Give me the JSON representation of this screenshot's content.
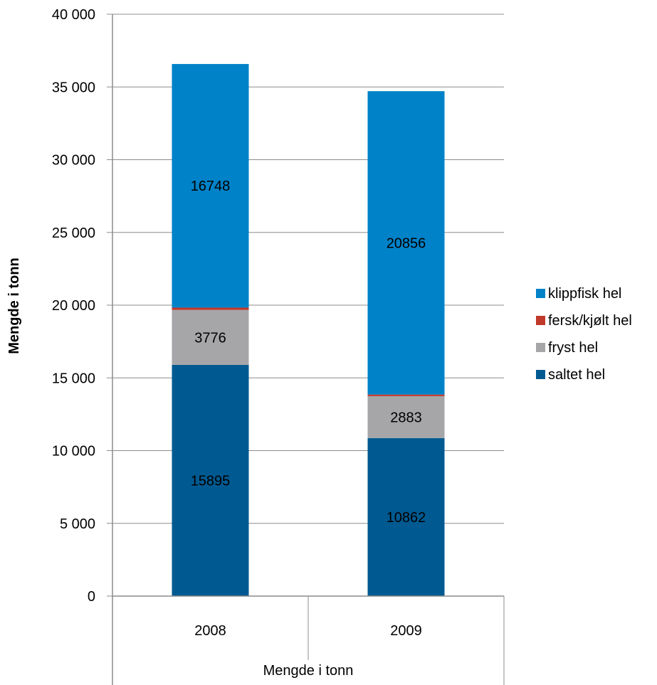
{
  "chart_data": {
    "type": "bar",
    "stacked": true,
    "categories": [
      "2008",
      "2009"
    ],
    "series": [
      {
        "name": "saltet hel",
        "values": [
          15895,
          10862
        ],
        "color": "#005a91",
        "labels": [
          "15895",
          "10862"
        ]
      },
      {
        "name": "fryst hel",
        "values": [
          3776,
          2883
        ],
        "color": "#a6a6a9",
        "labels": [
          "3776",
          "2883"
        ]
      },
      {
        "name": "fersk/kjølt hel",
        "values": [
          160,
          110
        ],
        "color": "#c0392b",
        "labels": [
          "",
          ""
        ]
      },
      {
        "name": "klippfisk hel",
        "values": [
          16748,
          20856
        ],
        "color": "#0082c8",
        "labels": [
          "16748",
          "20856"
        ]
      }
    ],
    "legend_order": [
      "klippfisk hel",
      "fersk/kjølt hel",
      "fryst hel",
      "saltet hel"
    ],
    "xlabel": "Mengde i tonn",
    "ylabel": "Mengde i tonn",
    "ylim": [
      0,
      40000
    ],
    "yticks": [
      0,
      5000,
      10000,
      15000,
      20000,
      25000,
      30000,
      35000,
      40000
    ],
    "ytick_labels": [
      "0",
      "5 000",
      "10 000",
      "15 000",
      "20 000",
      "25 000",
      "30 000",
      "35 000",
      "40 000"
    ],
    "grid": true,
    "legend_position": "right"
  }
}
